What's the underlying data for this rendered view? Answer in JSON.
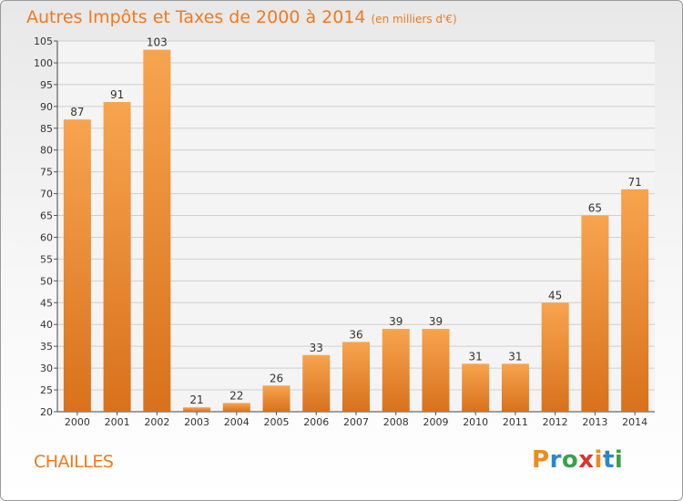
{
  "header": {
    "title": "Autres Impôts et Taxes de 2000 à 2014",
    "unit": "(en milliers d'€)"
  },
  "footer": {
    "commune": "CHAILLES",
    "brand": "Proxiti"
  },
  "colors": {
    "accent": "#ee7a1f",
    "bar_light": "#f7a44f",
    "bar_dark": "#d8711c"
  },
  "chart_data": {
    "type": "bar",
    "title": "Autres Impôts et Taxes de 2000 à 2014",
    "subtitle": "(en milliers d'€)",
    "categories": [
      "2000",
      "2001",
      "2002",
      "2003",
      "2004",
      "2005",
      "2006",
      "2007",
      "2008",
      "2009",
      "2010",
      "2011",
      "2012",
      "2013",
      "2014"
    ],
    "values": [
      87,
      91,
      103,
      21,
      22,
      26,
      33,
      36,
      39,
      39,
      31,
      31,
      45,
      65,
      71
    ],
    "ylim": [
      20,
      105
    ],
    "yticks": [
      20,
      25,
      30,
      35,
      40,
      45,
      50,
      55,
      60,
      65,
      70,
      75,
      80,
      85,
      90,
      95,
      100,
      105
    ],
    "grid": true,
    "legend": "none"
  }
}
